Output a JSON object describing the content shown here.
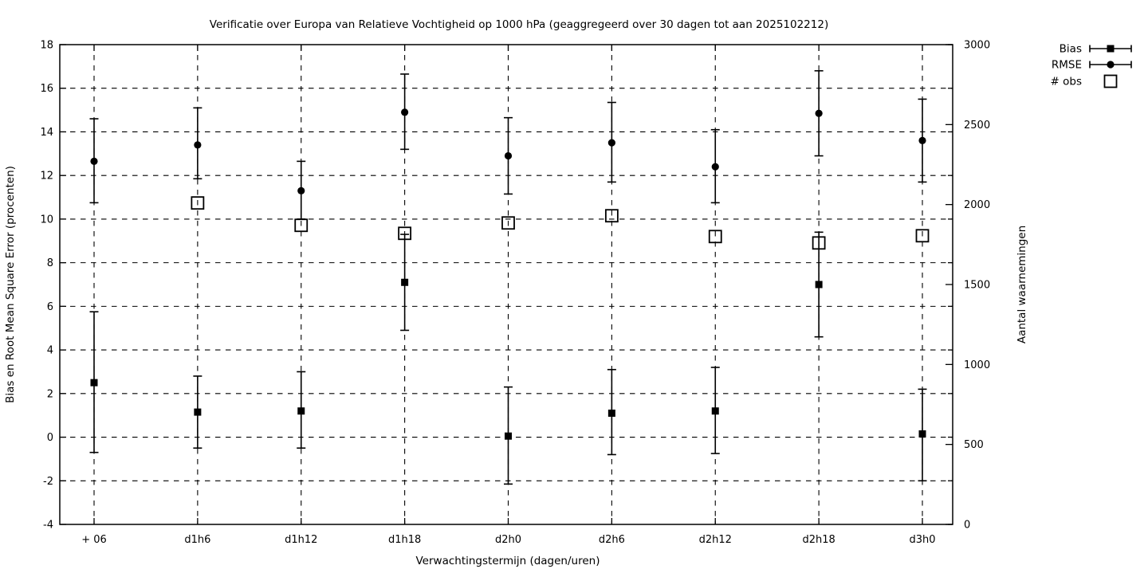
{
  "page": {
    "background_color": "#ffffff",
    "foreground_color": "#000000"
  },
  "chart_data": {
    "type": "scatter",
    "title": "Verificatie over Europa van Relatieve Vochtigheid op 1000 hPa (geaggregeerd over 30 dagen tot aan 2025102212)",
    "xlabel": "Verwachtingstermijn (dagen/uren)",
    "ylabel_left": "Bias en Root Mean Square Error (procenten)",
    "ylabel_right": "Aantal waarnemingen",
    "ylim_left": [
      -4,
      18
    ],
    "ylim_right": [
      0,
      3000
    ],
    "yticks_left": [
      -4,
      -2,
      0,
      2,
      4,
      6,
      8,
      10,
      12,
      14,
      16,
      18
    ],
    "yticks_right": [
      0,
      500,
      1000,
      1500,
      2000,
      2500,
      3000
    ],
    "grid": true,
    "grid_style": "dashed",
    "legend_position": "top-right-outside",
    "categories": [
      "+ 06",
      "d1h6",
      "d1h12",
      "d1h18",
      "d2h0",
      "d2h6",
      "d2h12",
      "d2h18",
      "d3h0"
    ],
    "series": [
      {
        "name": "Bias",
        "axis": "left",
        "marker": "filled-square",
        "values": [
          2.5,
          1.15,
          1.2,
          7.1,
          0.05,
          1.1,
          1.2,
          7.0,
          0.15
        ],
        "err_lo": [
          -0.7,
          -0.5,
          -0.5,
          4.9,
          -2.15,
          -0.8,
          -0.75,
          4.6,
          -2.0
        ],
        "err_hi": [
          5.75,
          2.8,
          3.0,
          9.3,
          2.3,
          3.1,
          3.2,
          9.4,
          2.2
        ]
      },
      {
        "name": "RMSE",
        "axis": "left",
        "marker": "filled-circle",
        "values": [
          12.65,
          13.4,
          11.3,
          14.9,
          12.9,
          13.5,
          12.4,
          14.85,
          13.6
        ],
        "err_lo": [
          10.75,
          11.85,
          10.0,
          13.2,
          11.15,
          11.7,
          10.75,
          12.9,
          11.7
        ],
        "err_hi": [
          14.6,
          15.1,
          12.65,
          16.65,
          14.65,
          15.35,
          14.1,
          16.8,
          15.5
        ]
      },
      {
        "name": "# obs",
        "axis": "right",
        "marker": "open-square",
        "values": [
          null,
          2010,
          1870,
          1820,
          1885,
          1930,
          1800,
          1760,
          1805
        ]
      }
    ]
  }
}
